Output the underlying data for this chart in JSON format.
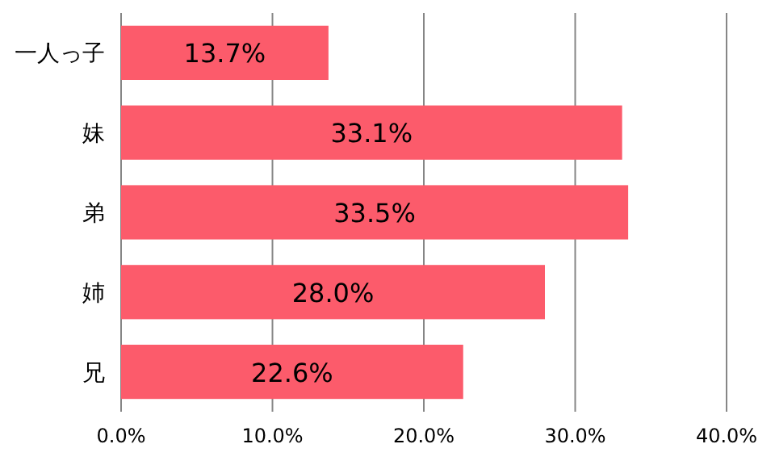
{
  "chart_data": {
    "type": "bar",
    "orientation": "horizontal",
    "categories": [
      "一人っ子",
      "妹",
      "弟",
      "姉",
      "兄"
    ],
    "values": [
      13.7,
      33.1,
      33.5,
      28.0,
      22.6
    ],
    "value_labels": [
      "13.7%",
      "33.1%",
      "33.5%",
      "28.0%",
      "22.6%"
    ],
    "color": "#fc5b6b",
    "xlim": [
      0,
      40
    ],
    "xticks": [
      {
        "value": 0,
        "label": "0.0%"
      },
      {
        "value": 10,
        "label": "10.0%"
      },
      {
        "value": 20,
        "label": "20.0%"
      },
      {
        "value": 30,
        "label": "30.0%"
      },
      {
        "value": 40,
        "label": "40.0%"
      }
    ],
    "grid": "x"
  }
}
